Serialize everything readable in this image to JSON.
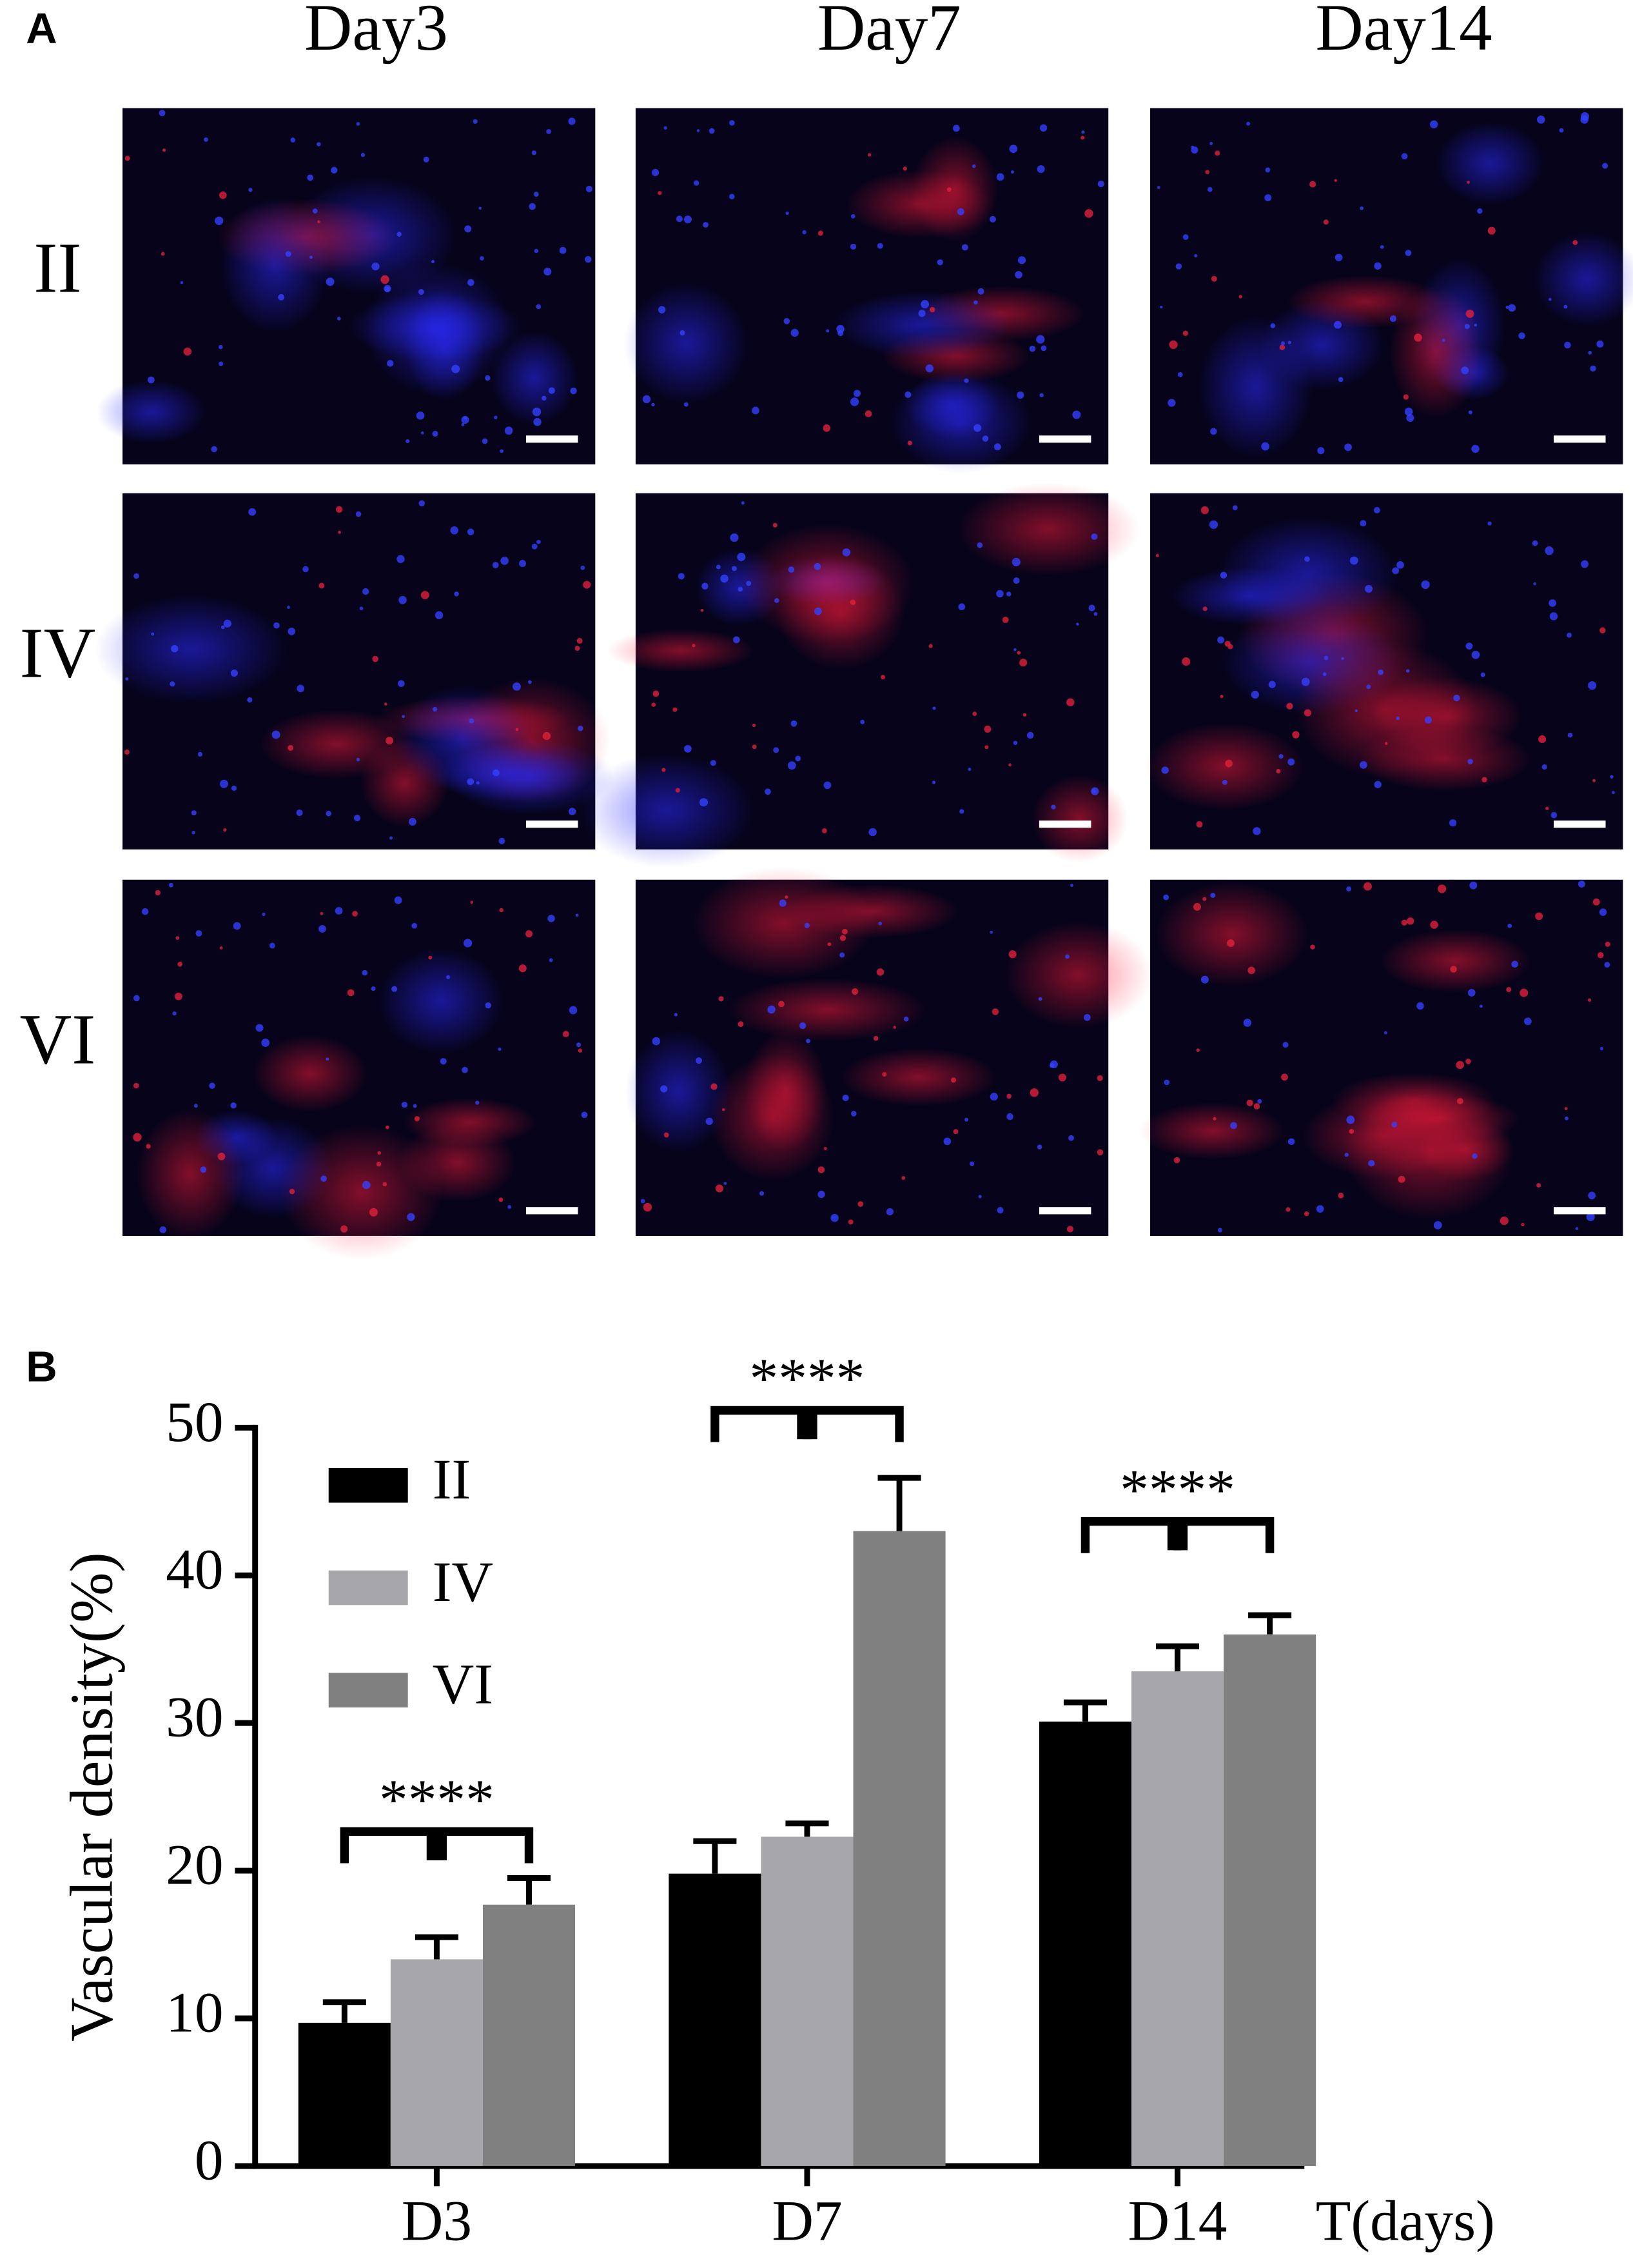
{
  "panel_a": {
    "label": "A",
    "columns": [
      "Day3",
      "Day7",
      "Day14"
    ],
    "rows": [
      "II",
      "IV",
      "VI"
    ]
  },
  "chart_data": {
    "type": "bar",
    "panel_label": "B",
    "y_label": "Vascular density(%)",
    "x_label": "T(days)",
    "categories": [
      "D3",
      "D7",
      "D14"
    ],
    "series": [
      {
        "name": "II",
        "color": "#000000",
        "values": [
          9.7,
          19.8,
          30.1
        ],
        "errors": [
          1.4,
          2.2,
          1.3
        ]
      },
      {
        "name": "IV",
        "color": "#a6a6ab",
        "values": [
          14,
          22.3,
          33.5
        ],
        "errors": [
          1.5,
          0.9,
          1.7
        ]
      },
      {
        "name": "VI",
        "color": "#808080",
        "values": [
          17.7,
          43,
          36
        ],
        "errors": [
          1.8,
          3.6,
          1.3
        ]
      }
    ],
    "annotations": [
      "****",
      "****",
      "****"
    ],
    "ylim": [
      0,
      50
    ],
    "yticks": [
      0,
      10,
      20,
      30,
      40,
      50
    ],
    "legend": "upper-left"
  }
}
